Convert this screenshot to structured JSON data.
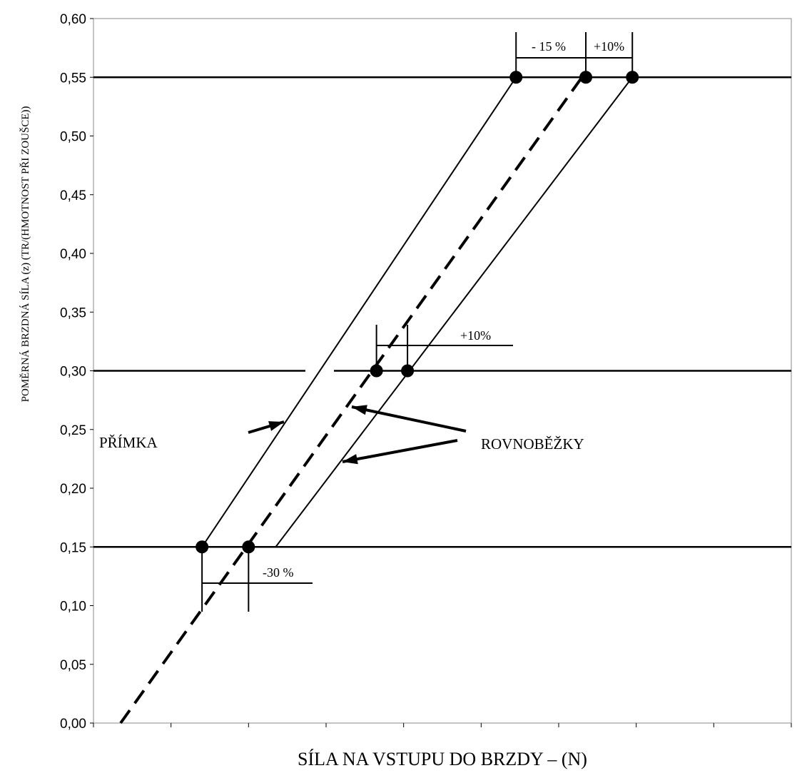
{
  "chart_data": {
    "type": "line",
    "title": "",
    "xlabel": "SÍLA NA VSTUPU DO BRZDY – (N)",
    "ylabel": "POMĚRNÁ BRZDNÁ SÍLA (z) (TR/(HMOTNOST PŘI ZOUŠCE))",
    "ylim": [
      0,
      0.6
    ],
    "xlim": [
      0,
      9
    ],
    "y_ticks": [
      "0,00",
      "0,05",
      "0,10",
      "0,15",
      "0,20",
      "0,25",
      "0,30",
      "0,35",
      "0,40",
      "0,45",
      "0,50",
      "0,55",
      "0,60"
    ],
    "x_ticks_labeled": false,
    "grid": false,
    "horizontal_reference_lines": [
      0.15,
      0.3,
      0.55
    ],
    "series": [
      {
        "style": "solid",
        "points": [
          {
            "x": 1.4,
            "y": 0.15
          },
          {
            "x": 5.45,
            "y": 0.55
          }
        ]
      },
      {
        "style": "dashed",
        "points": [
          {
            "x": 0.35,
            "y": 0.0
          },
          {
            "x": 6.3,
            "y": 0.55
          }
        ]
      },
      {
        "style": "solid",
        "points": [
          {
            "x": 2.35,
            "y": 0.15
          },
          {
            "x": 6.95,
            "y": 0.55
          }
        ]
      }
    ],
    "markers": [
      {
        "x": 1.4,
        "y": 0.15
      },
      {
        "x": 2.0,
        "y": 0.15
      },
      {
        "x": 3.65,
        "y": 0.3
      },
      {
        "x": 4.05,
        "y": 0.3
      },
      {
        "x": 5.45,
        "y": 0.55
      },
      {
        "x": 6.35,
        "y": 0.55
      },
      {
        "x": 6.95,
        "y": 0.55
      }
    ],
    "annotations": {
      "minus15": "- 15 %",
      "plus10_top": "+10%",
      "plus10_mid": "+10%",
      "minus30": "-30 %",
      "primka": "PŘÍMKA",
      "rovnobezky": "ROVNOBĚŽKY"
    }
  }
}
